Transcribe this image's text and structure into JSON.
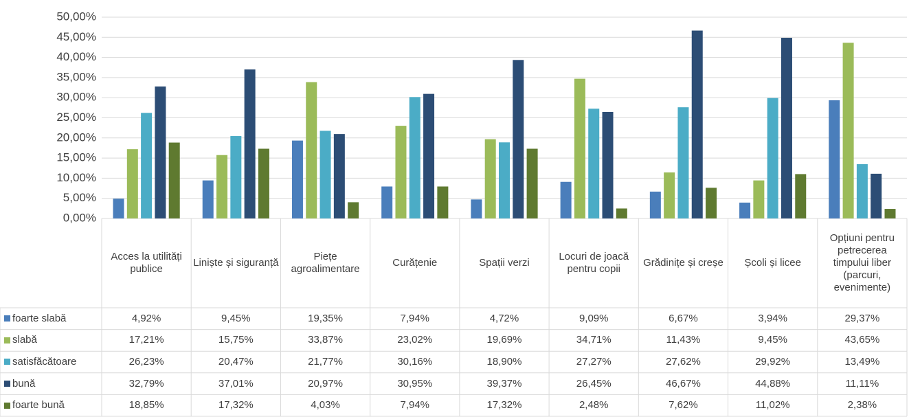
{
  "chart_data": {
    "type": "bar",
    "categories": [
      "Acces la utilități publice",
      "Liniște și siguranță",
      "Piețe agroalimentare",
      "Curățenie",
      "Spații verzi",
      "Locuri de joacă pentru copii",
      "Grădinițe și creșe",
      "Școli și licee",
      "Opțiuni pentru petrecerea timpului liber (parcuri, evenimente)"
    ],
    "series": [
      {
        "name": "foarte slabă",
        "color": "#4a7ebb",
        "values": [
          4.92,
          9.45,
          19.35,
          7.94,
          4.72,
          9.09,
          6.67,
          3.94,
          29.37
        ],
        "value_labels": [
          "4,92%",
          "9,45%",
          "19,35%",
          "7,94%",
          "4,72%",
          "9,09%",
          "6,67%",
          "3,94%",
          "29,37%"
        ]
      },
      {
        "name": "slabă",
        "color": "#9bbb59",
        "values": [
          17.21,
          15.75,
          33.87,
          23.02,
          19.69,
          34.71,
          11.43,
          9.45,
          43.65
        ],
        "value_labels": [
          "17,21%",
          "15,75%",
          "33,87%",
          "23,02%",
          "19,69%",
          "34,71%",
          "11,43%",
          "9,45%",
          "43,65%"
        ]
      },
      {
        "name": "satisfăcătoare",
        "color": "#4bacc6",
        "values": [
          26.23,
          20.47,
          21.77,
          30.16,
          18.9,
          27.27,
          27.62,
          29.92,
          13.49
        ],
        "value_labels": [
          "26,23%",
          "20,47%",
          "21,77%",
          "30,16%",
          "18,90%",
          "27,27%",
          "27,62%",
          "29,92%",
          "13,49%"
        ]
      },
      {
        "name": "bună",
        "color": "#2c4d75",
        "values": [
          32.79,
          37.01,
          20.97,
          30.95,
          39.37,
          26.45,
          46.67,
          44.88,
          11.11
        ],
        "value_labels": [
          "32,79%",
          "37,01%",
          "20,97%",
          "30,95%",
          "39,37%",
          "26,45%",
          "46,67%",
          "44,88%",
          "11,11%"
        ]
      },
      {
        "name": "foarte bună",
        "color": "#5f7a30",
        "values": [
          18.85,
          17.32,
          4.03,
          7.94,
          17.32,
          2.48,
          7.62,
          11.02,
          2.38
        ],
        "value_labels": [
          "18,85%",
          "17,32%",
          "4,03%",
          "7,94%",
          "17,32%",
          "2,48%",
          "7,62%",
          "11,02%",
          "2,38%"
        ]
      }
    ],
    "ylim": [
      0,
      50
    ],
    "yticks": [
      {
        "value": 0,
        "label": "0,00%"
      },
      {
        "value": 5,
        "label": "5,00%"
      },
      {
        "value": 10,
        "label": "10,00%"
      },
      {
        "value": 15,
        "label": "15,00%"
      },
      {
        "value": 20,
        "label": "20,00%"
      },
      {
        "value": 25,
        "label": "25,00%"
      },
      {
        "value": 30,
        "label": "30,00%"
      },
      {
        "value": 35,
        "label": "35,00%"
      },
      {
        "value": 40,
        "label": "40,00%"
      },
      {
        "value": 45,
        "label": "45,00%"
      },
      {
        "value": 50,
        "label": "50,00%"
      }
    ],
    "grid": true
  }
}
